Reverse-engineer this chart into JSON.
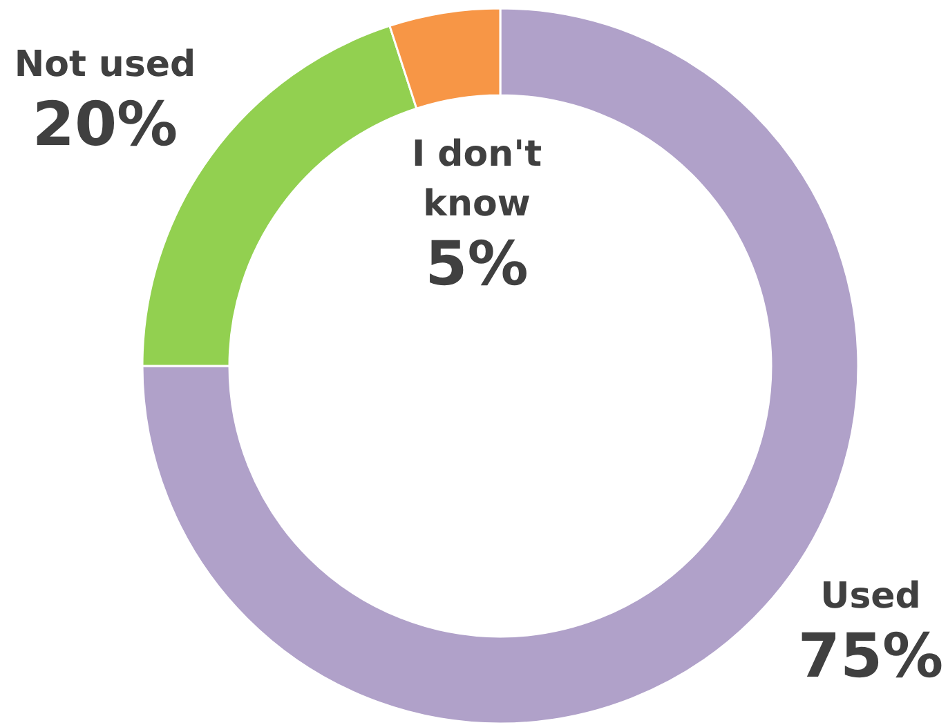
{
  "chart_data": {
    "type": "donut",
    "categories": [
      "Used",
      "Not used",
      "I don't know"
    ],
    "values": [
      75,
      20,
      5
    ],
    "colors": [
      "#b0a1c9",
      "#92d050",
      "#f79646"
    ],
    "value_labels": [
      "75%",
      "20%",
      "5%"
    ]
  }
}
